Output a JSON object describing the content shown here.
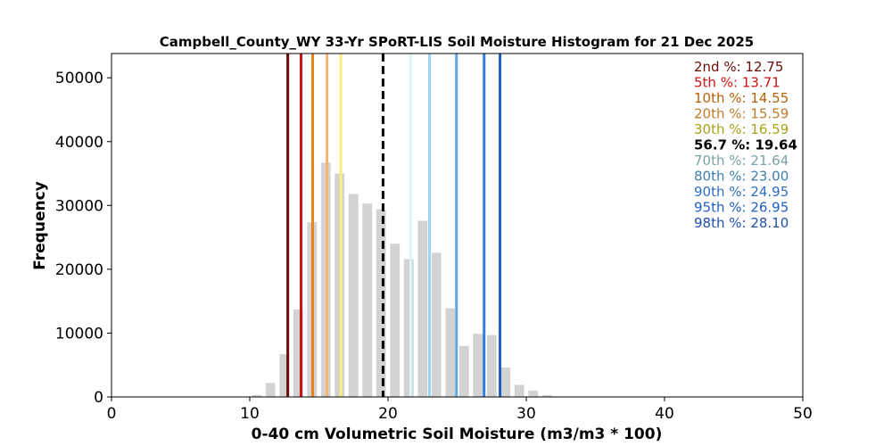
{
  "chart_data": {
    "type": "bar",
    "title": "Campbell_County_WY 33-Yr SPoRT-LIS Soil Moisture Histogram for 21 Dec 2025",
    "xlabel": "0-40 cm Volumetric Soil Moisture (m3/m3 * 100)",
    "ylabel": "Frequency",
    "xlim": [
      0,
      50
    ],
    "ylim": [
      0,
      53800
    ],
    "xticks": [
      "0",
      "10",
      "20",
      "30",
      "40",
      "50"
    ],
    "yticks": [
      "0",
      "10000",
      "20000",
      "30000",
      "40000",
      "50000"
    ],
    "grid": false,
    "bar_color": "#d3d3d3",
    "bins": [
      {
        "x": 10.5,
        "value": 300
      },
      {
        "x": 11.5,
        "value": 2200
      },
      {
        "x": 12.5,
        "value": 6700
      },
      {
        "x": 13.5,
        "value": 13700
      },
      {
        "x": 14.5,
        "value": 27400
      },
      {
        "x": 15.5,
        "value": 36700
      },
      {
        "x": 16.5,
        "value": 35000
      },
      {
        "x": 17.5,
        "value": 31800
      },
      {
        "x": 18.5,
        "value": 30300
      },
      {
        "x": 19.5,
        "value": 29400
      },
      {
        "x": 20.5,
        "value": 24000
      },
      {
        "x": 21.5,
        "value": 21600
      },
      {
        "x": 22.5,
        "value": 27600
      },
      {
        "x": 23.5,
        "value": 22600
      },
      {
        "x": 24.5,
        "value": 13900
      },
      {
        "x": 25.5,
        "value": 8000
      },
      {
        "x": 26.5,
        "value": 9900
      },
      {
        "x": 27.5,
        "value": 9700
      },
      {
        "x": 28.5,
        "value": 4600
      },
      {
        "x": 29.5,
        "value": 1900
      },
      {
        "x": 30.5,
        "value": 1000
      },
      {
        "x": 31.5,
        "value": 300
      }
    ],
    "percentiles": [
      {
        "label": "2nd %: 12.75",
        "x": 12.75,
        "color": "#6b0a0a",
        "dashed": false
      },
      {
        "label": "5th %: 13.71",
        "x": 13.71,
        "color": "#cc1111",
        "dashed": false
      },
      {
        "label": "10th %: 14.55",
        "x": 14.55,
        "color": "#e8841a",
        "dashed": false
      },
      {
        "label": "20th %: 15.59",
        "x": 15.59,
        "color": "#f5b56e",
        "dashed": false
      },
      {
        "label": "30th %: 16.59",
        "x": 16.59,
        "color": "#f7f27a",
        "dashed": false
      },
      {
        "label": "56.7 %: 19.64",
        "x": 19.64,
        "color": "#000000",
        "dashed": true
      },
      {
        "label": "70th %: 21.64",
        "x": 21.64,
        "color": "#d8f6f8",
        "dashed": false
      },
      {
        "label": "80th %: 23.00",
        "x": 23.0,
        "color": "#9fd3f2",
        "dashed": false
      },
      {
        "label": "90th %: 24.95",
        "x": 24.95,
        "color": "#5aaae8",
        "dashed": false
      },
      {
        "label": "95th %: 26.95",
        "x": 26.95,
        "color": "#2f7fd6",
        "dashed": false
      },
      {
        "label": "98th %: 28.10",
        "x": 28.1,
        "color": "#1f5fc4",
        "dashed": false
      }
    ],
    "legend": {
      "placement": "top-right",
      "text_colors": [
        "#6b0a0a",
        "#cc1111",
        "#b5600a",
        "#c07a2a",
        "#a8a21a",
        "#000000",
        "#7aa0a4",
        "#3f7faa",
        "#2f6fc0",
        "#1f5fc4",
        "#1f4faa"
      ]
    }
  }
}
